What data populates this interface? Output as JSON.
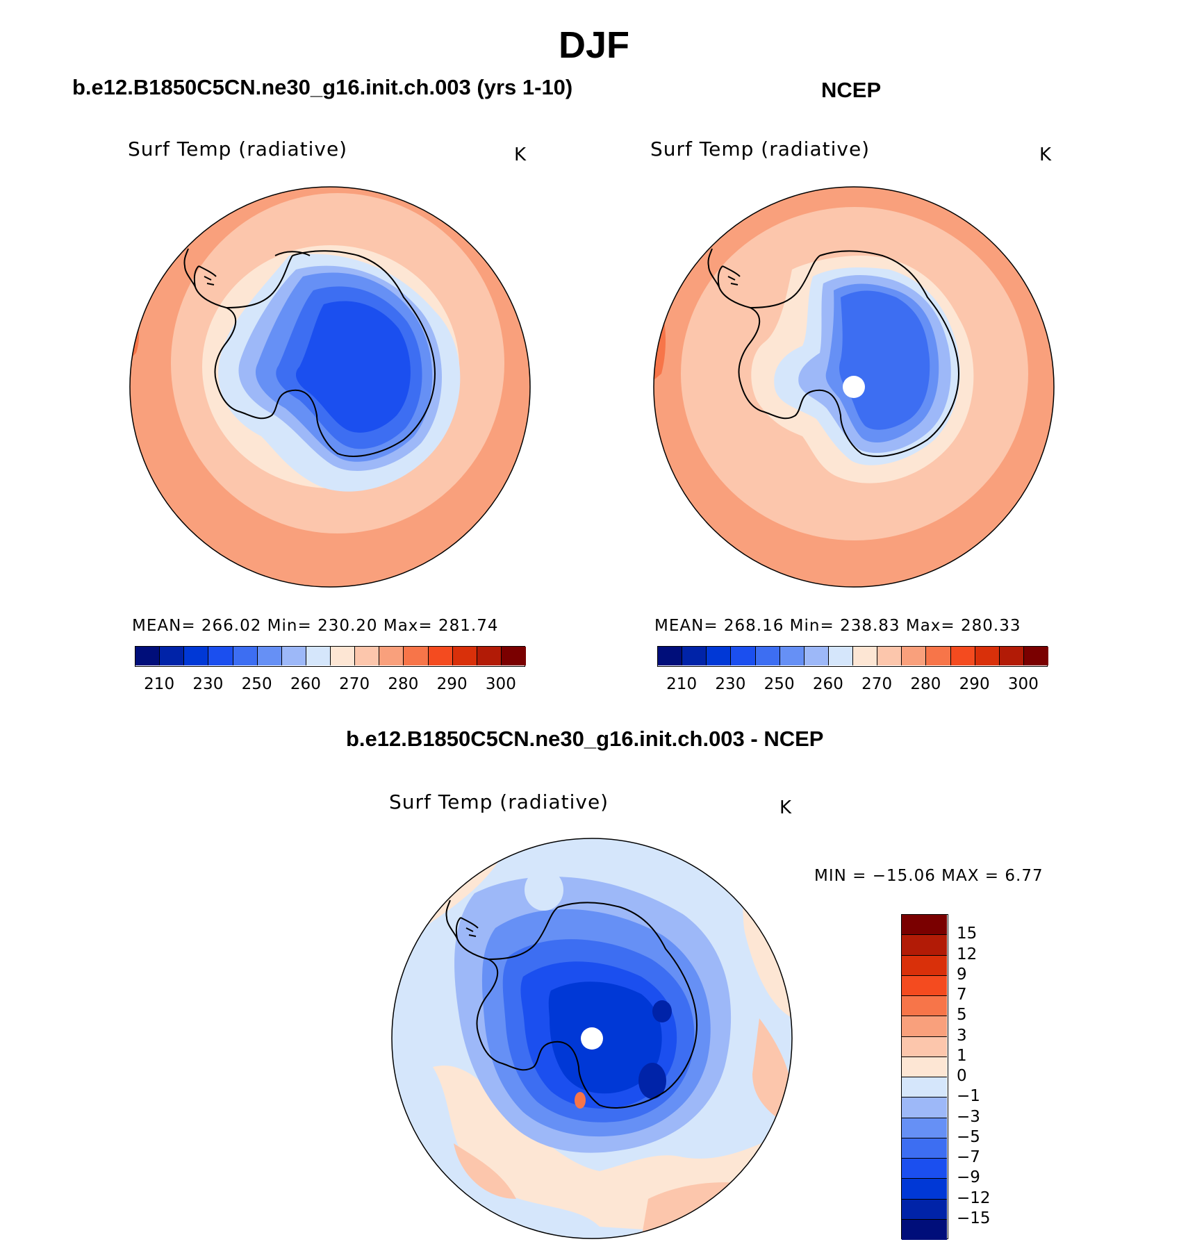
{
  "title": "DJF",
  "panels": [
    {
      "title": "b.e12.B1850C5CN.ne30_g16.init.ch.003 (yrs 1-10)",
      "variable": "Surf Temp (radiative)",
      "units": "K",
      "stats": "MEAN=  266.02    Min=  230.20    Max=  281.74",
      "colorbar_labels": [
        "210",
        "230",
        "250",
        "260",
        "270",
        "280",
        "290",
        "300"
      ]
    },
    {
      "title": "NCEP",
      "variable": "Surf Temp (radiative)",
      "units": "K",
      "stats": "MEAN=  268.16    Min=  238.83    Max=  280.33",
      "colorbar_labels": [
        "210",
        "230",
        "250",
        "260",
        "270",
        "280",
        "290",
        "300"
      ]
    },
    {
      "title": "b.e12.B1850C5CN.ne30_g16.init.ch.003 - NCEP",
      "variable": "Surf Temp (radiative)",
      "units": "K",
      "stats": "MIN  =  −15.06  MAX  =      6.77",
      "colorbar_labels": [
        "15",
        "12",
        "9",
        "7",
        "5",
        "3",
        "1",
        "0",
        "−1",
        "−3",
        "−5",
        "−7",
        "−9",
        "−12",
        "−15"
      ]
    }
  ],
  "abs_palette": [
    "#000e7a",
    "#0023a8",
    "#0038d6",
    "#1b4fef",
    "#3d6ef2",
    "#6690f5",
    "#9db8f8",
    "#d5e6fb",
    "#fde6d4",
    "#fcc6ac",
    "#f9a07c",
    "#f77549",
    "#f44b1f",
    "#d9300a",
    "#b21b06",
    "#7a0000"
  ],
  "diff_palette": [
    "#7a0000",
    "#b21b06",
    "#d9300a",
    "#f44b1f",
    "#f77549",
    "#f9a07c",
    "#fcc6ac",
    "#fde6d4",
    "#d5e6fb",
    "#9db8f8",
    "#6690f5",
    "#3d6ef2",
    "#1b4fef",
    "#0038d6",
    "#0023a8",
    "#000e7a"
  ]
}
